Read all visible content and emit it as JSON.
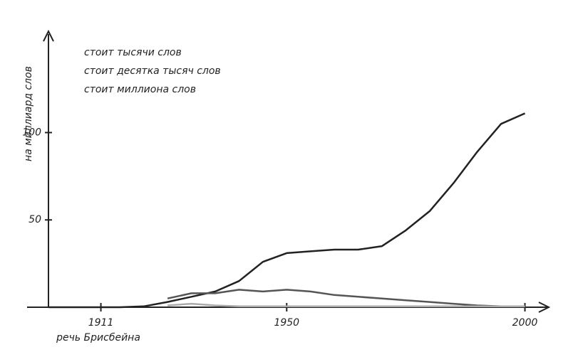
{
  "chart_data": {
    "type": "line",
    "y_label": "на миллиард слов",
    "x": [
      1900,
      1905,
      1910,
      1915,
      1920,
      1925,
      1930,
      1935,
      1940,
      1945,
      1950,
      1955,
      1960,
      1965,
      1970,
      1975,
      1980,
      1985,
      1990,
      1995,
      2000
    ],
    "series": [
      {
        "name": "стоит тысячи слов",
        "color": "#222222",
        "values": [
          0,
          0,
          0,
          0,
          0.5,
          3,
          6,
          9,
          15,
          26,
          31,
          32,
          33,
          33,
          35,
          44,
          55,
          71,
          89,
          105,
          111
        ]
      },
      {
        "name": "стоит десятка тысяч слов",
        "color": "#555555",
        "values": [
          null,
          null,
          null,
          null,
          null,
          5,
          8,
          8,
          10,
          9,
          10,
          9,
          7,
          6,
          5,
          4,
          3,
          2,
          1,
          0.5,
          0.5
        ]
      },
      {
        "name": "стоит миллиона слов",
        "color": "#aaaaaa",
        "values": [
          null,
          null,
          null,
          null,
          null,
          1,
          2,
          1,
          0.5,
          0.5,
          0.5,
          0.5,
          0.5,
          0.5,
          0.5,
          0.5,
          0.5,
          0.5,
          0.5,
          0.5,
          0.5
        ]
      }
    ],
    "xlim": [
      1900,
      2005
    ],
    "ylim": [
      0,
      158
    ],
    "xticks": [
      1911,
      1950,
      2000
    ],
    "yticks": [
      50,
      100
    ],
    "annotation": "речь Брисбейна",
    "grid": false
  }
}
